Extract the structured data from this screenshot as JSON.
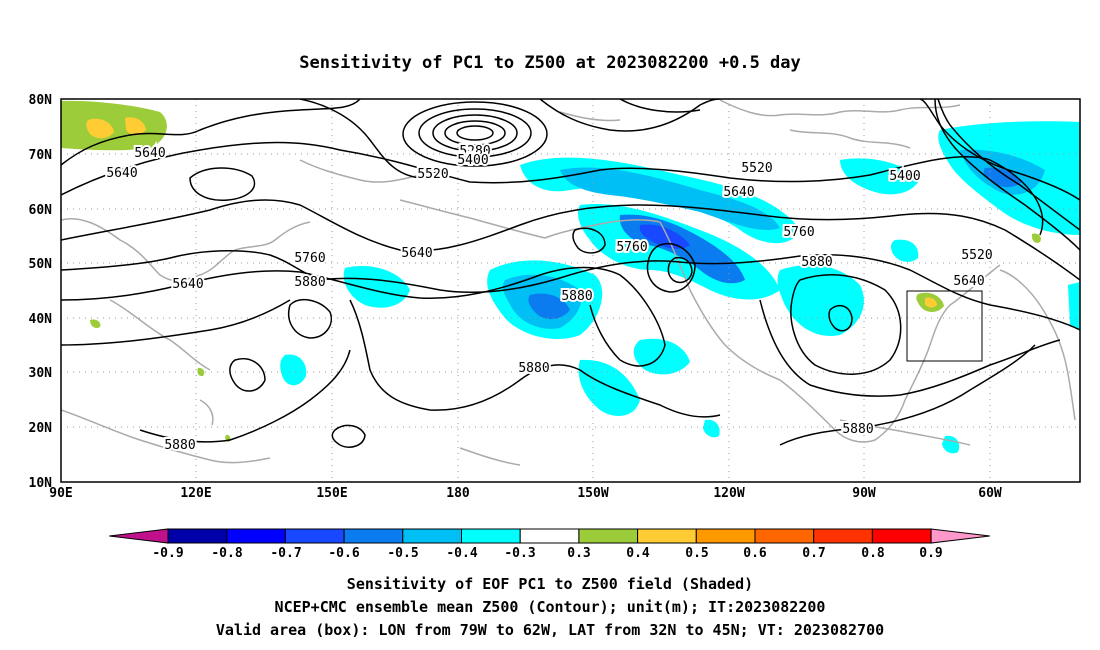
{
  "title": "Sensitivity of PC1 to Z500 at 2023082200 +0.5 day",
  "lat_labels": [
    "80N",
    "70N",
    "60N",
    "50N",
    "40N",
    "30N",
    "20N",
    "10N"
  ],
  "lon_labels": [
    "90E",
    "120E",
    "150E",
    "180",
    "150W",
    "120W",
    "90W",
    "60W"
  ],
  "contour_labels": [
    "5280",
    "5400",
    "5520",
    "5640",
    "5640",
    "5640",
    "5640",
    "5760",
    "5760",
    "5880",
    "5880",
    "5880",
    "5880",
    "5760",
    "5520",
    "5640",
    "5400",
    "5880",
    "5520",
    "5640",
    "5880"
  ],
  "colorbar": {
    "labels": [
      "-0.9",
      "-0.8",
      "-0.7",
      "-0.6",
      "-0.5",
      "-0.4",
      "-0.3",
      "0.3",
      "0.4",
      "0.5",
      "0.6",
      "0.7",
      "0.8",
      "0.9"
    ],
    "colors": [
      "#c0108c",
      "#0000a8",
      "#0000ff",
      "#1848ff",
      "#0a7cf0",
      "#00bff5",
      "#00ffff",
      "#ffffff",
      "#9ccc3a",
      "#ffcc33",
      "#ff9900",
      "#ff6600",
      "#ff3300",
      "#ff0000",
      "#ff99cc"
    ]
  },
  "box": {
    "lon_west": "79W",
    "lon_east": "62W",
    "lat_south": "32N",
    "lat_north": "45N"
  },
  "captions": [
    "Sensitivity of EOF PC1 to Z500 field (Shaded)",
    "NCEP+CMC ensemble mean Z500 (Contour); unit(m); IT:2023082200",
    "Valid area (box): LON from 79W to 62W, LAT from 32N to 45N; VT: 2023082700"
  ]
}
